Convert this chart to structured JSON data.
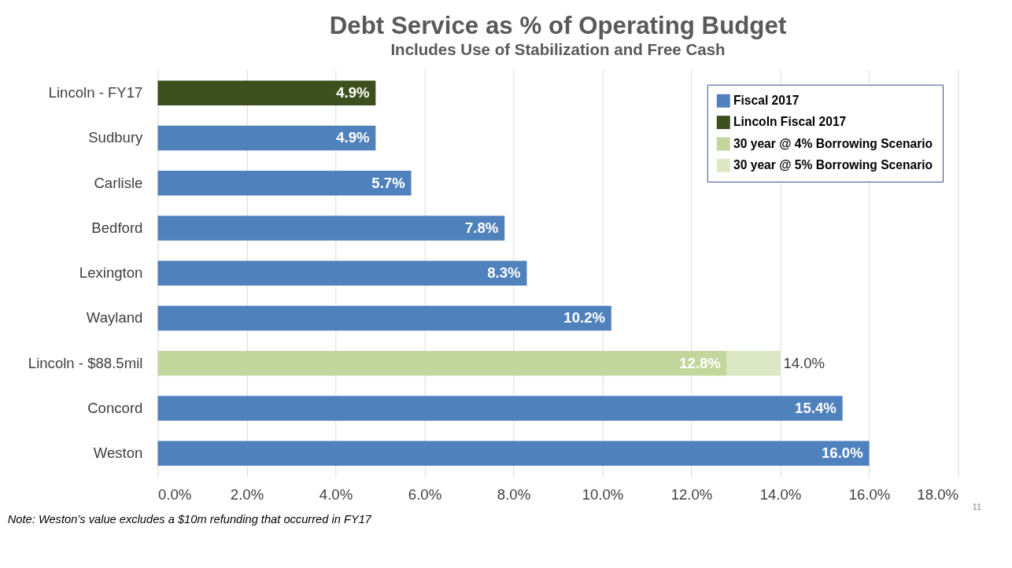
{
  "chart_data": {
    "type": "bar",
    "orientation": "horizontal",
    "stacked": true,
    "title": "Debt Service as % of Operating Budget",
    "subtitle": "Includes Use of Stabilization and Free Cash",
    "categories": [
      "Lincoln - FY17",
      "Sudbury",
      "Carlisle",
      "Bedford",
      "Lexington",
      "Wayland",
      "Lincoln - $88.5mil",
      "Concord",
      "Weston"
    ],
    "series": [
      {
        "name": "Fiscal 2017",
        "color": "#4f81bd",
        "values": [
          null,
          4.9,
          5.7,
          7.8,
          8.3,
          10.2,
          null,
          15.4,
          16.0
        ],
        "value_labels": [
          null,
          "4.9%",
          "5.7%",
          "7.8%",
          "8.3%",
          "10.2%",
          null,
          "15.4%",
          "16.0%"
        ]
      },
      {
        "name": "Lincoln Fiscal 2017",
        "color": "#3d4f1c",
        "values": [
          4.9,
          null,
          null,
          null,
          null,
          null,
          null,
          null,
          null
        ],
        "value_labels": [
          "4.9%",
          null,
          null,
          null,
          null,
          null,
          null,
          null,
          null
        ]
      },
      {
        "name": "30 year @ 4% Borrowing Scenario",
        "color": "#c3d69b",
        "values": [
          null,
          null,
          null,
          null,
          null,
          null,
          12.8,
          null,
          null
        ],
        "value_labels": [
          null,
          null,
          null,
          null,
          null,
          null,
          "12.8%",
          null,
          null
        ]
      },
      {
        "name": "30 year @ 5% Borrowing Scenario",
        "color": "#dce8c4",
        "values": [
          null,
          null,
          null,
          null,
          null,
          null,
          1.2,
          null,
          null
        ],
        "value_labels": [
          null,
          null,
          null,
          null,
          null,
          null,
          null,
          null,
          null
        ]
      }
    ],
    "totals": [
      null,
      null,
      null,
      null,
      null,
      null,
      "14.0%",
      null,
      null
    ],
    "xlim": [
      0,
      18
    ],
    "xticks": [
      {
        "value": 0,
        "label": "0.0%"
      },
      {
        "value": 2,
        "label": "2.0%"
      },
      {
        "value": 4,
        "label": "4.0%"
      },
      {
        "value": 6,
        "label": "6.0%"
      },
      {
        "value": 8,
        "label": "8.0%"
      },
      {
        "value": 10,
        "label": "10.0%"
      },
      {
        "value": 12,
        "label": "12.0%"
      },
      {
        "value": 14,
        "label": "14.0%"
      },
      {
        "value": 16,
        "label": "16.0%"
      },
      {
        "value": 18,
        "label": "18.0%"
      }
    ],
    "grid": "x",
    "legend": "top right",
    "annotations": [
      "Note: Weston’s value excludes a $10m refunding that occurred in FY17",
      "11"
    ]
  }
}
